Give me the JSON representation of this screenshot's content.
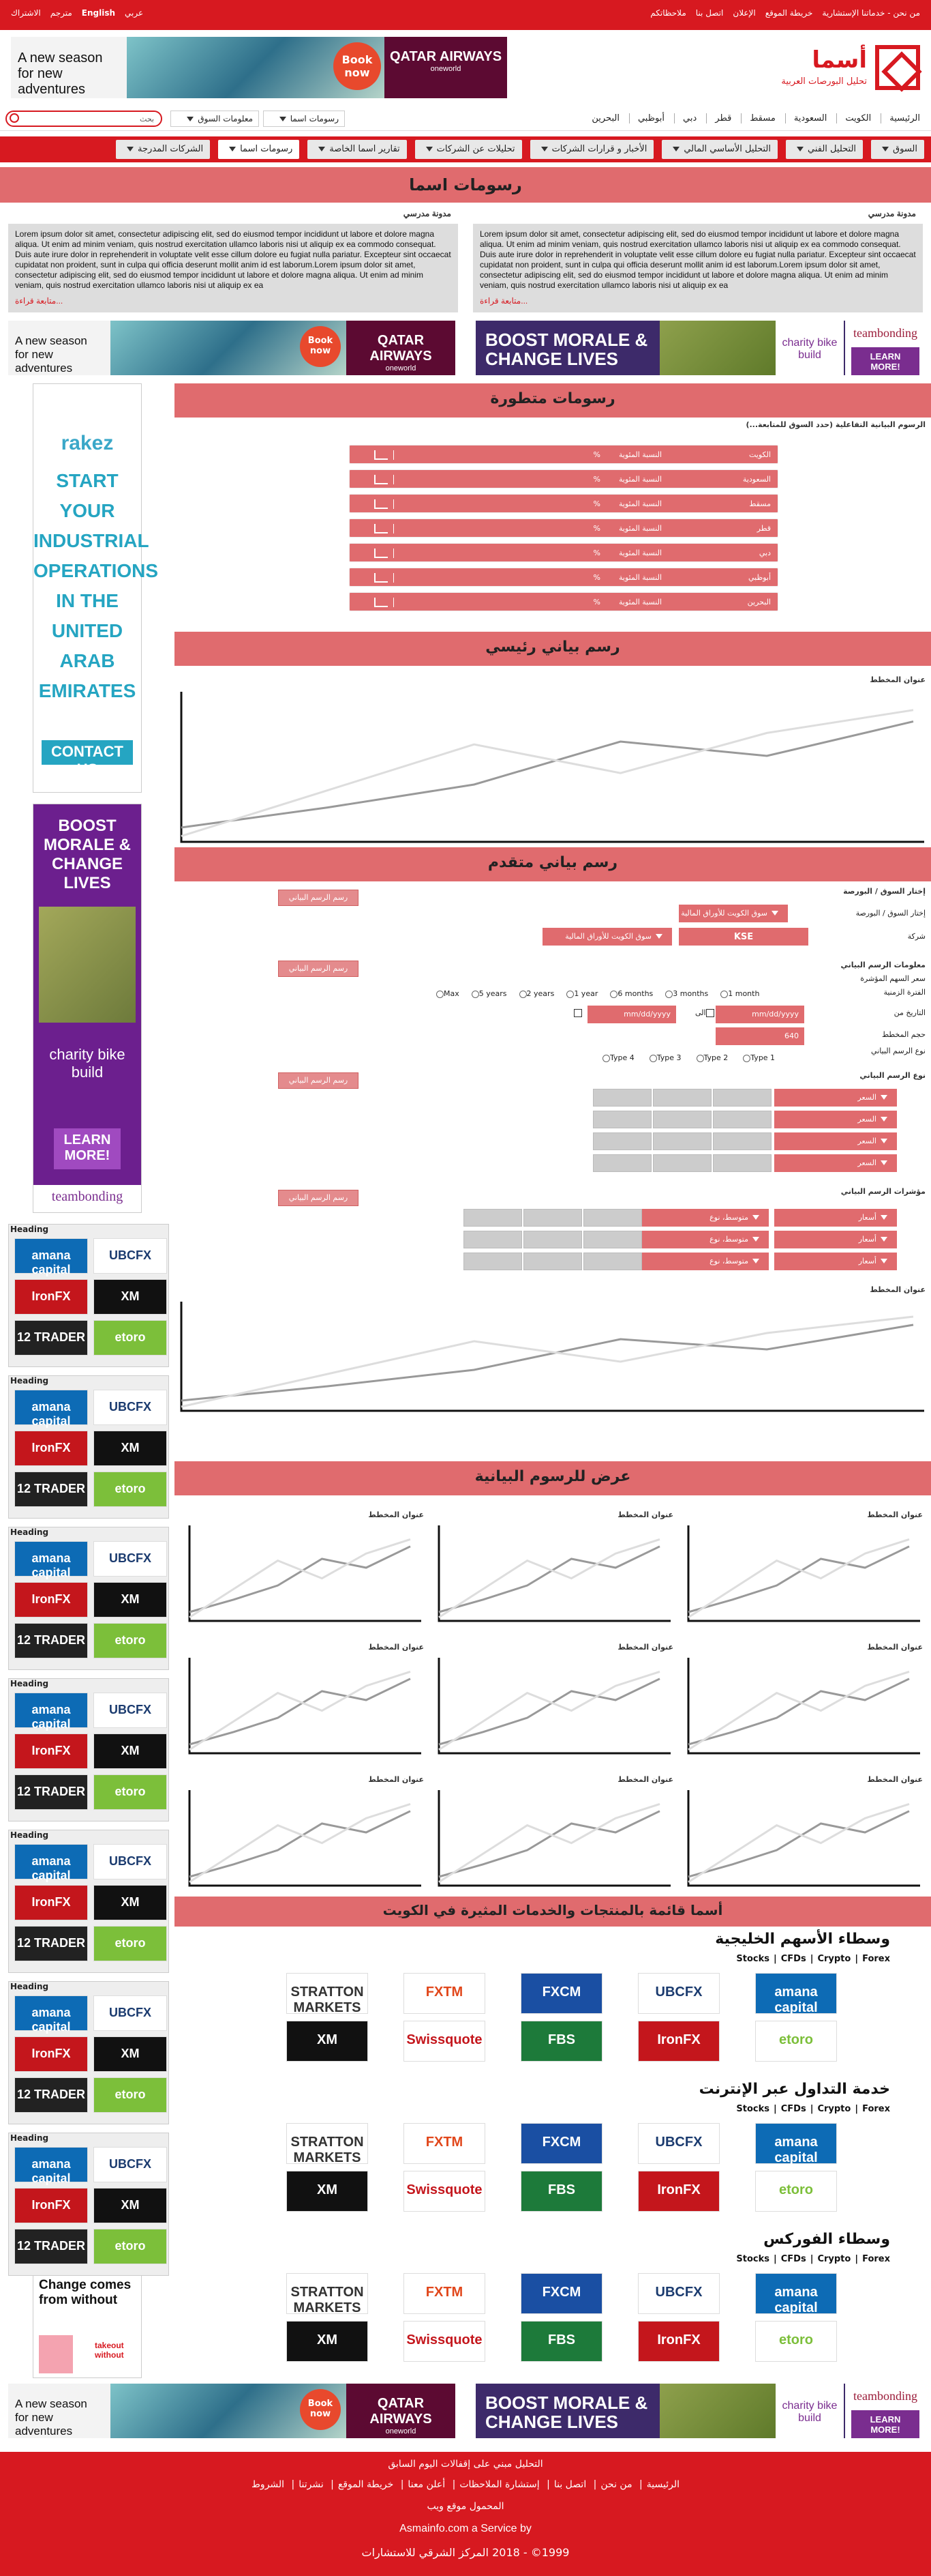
{
  "topbar": {
    "right_links": [
      "من نحن - خدماتنا الإستشارية",
      "خريطة الموقع",
      "الإعلان",
      "اتصل بنا",
      "ملاحظاتكم"
    ],
    "left_links": [
      "عربي",
      "English",
      "مترجم",
      "الاشتراك"
    ]
  },
  "logo": {
    "title": "أسما",
    "subtitle": "تحليل البورصات العربية"
  },
  "ad_qatar": {
    "left_text": "A new season for new adventures",
    "book": "Book now",
    "brand": "QATAR AIRWAYS",
    "brand_sub": "oneworld"
  },
  "nav": {
    "links": [
      "الرئيسية",
      "الكويت",
      "السعودية",
      "مسقط",
      "قطر",
      "دبي",
      "أبوظبي",
      "البحرين"
    ],
    "select1": "معلومات السوق",
    "select2": "رسومات اسما",
    "search_label": "بحث"
  },
  "menu": [
    "السوق",
    "التحليل الفني",
    "التحليل الأساسي المالي",
    "الأخبار و قرارات الشركات",
    "تحليلات عن الشركات",
    "تقارير اسما الخاصة",
    "رسومات اسما",
    "الشركات المدرجة"
  ],
  "page_title": "رسومات اسما",
  "blogs": [
    {
      "title": "مدونة مدرسي",
      "body": "Lorem ipsum dolor sit amet, consectetur adipiscing elit, sed do eiusmod tempor incididunt ut labore et dolore magna aliqua. Ut enim ad minim veniam, quis nostrud exercitation ullamco laboris nisi ut aliquip ex ea commodo consequat. Duis aute irure dolor in reprehenderit in voluptate velit esse cillum dolore eu fugiat nulla pariatur. Excepteur sint occaecat cupidatat non proident, sunt in culpa qui officia deserunt mollit anim id est laborum.Lorem ipsum dolor sit amet, consectetur adipiscing elit, sed do eiusmod tempor incididunt ut labore et dolore magna aliqua. Ut enim ad minim veniam, quis nostrud exercitation ullamco laboris nisi ut aliquip ex ea",
      "more": "متابعة قراءة..."
    },
    {
      "title": "مدونة مدرسي",
      "body": "Lorem ipsum dolor sit amet, consectetur adipiscing elit, sed do eiusmod tempor incididunt ut labore et dolore magna aliqua. Ut enim ad minim veniam, quis nostrud exercitation ullamco laboris nisi ut aliquip ex ea commodo consequat. Duis aute irure dolor in reprehenderit in voluptate velit esse cillum dolore eu fugiat nulla pariatur. Excepteur sint occaecat cupidatat non proident, sunt in culpa qui officia deserunt mollit anim id est laborum.Lorem ipsum dolor sit amet, consectetur adipiscing elit, sed do eiusmod tempor incididunt ut labore et dolore magna aliqua. Ut enim ad minim veniam, quis nostrud exercitation ullamco laboris nisi ut aliquip ex ea",
      "more": "متابعة قراءة..."
    }
  ],
  "ad_boost": {
    "title": "BOOST MORALE & CHANGE LIVES",
    "charity": "charity bike build",
    "brand": "teambonding",
    "learn": "LEARN MORE!"
  },
  "ad_rakez": {
    "logo": "rakez",
    "text": "START YOUR INDUSTRIAL OPERATIONS IN THE UNITED ARAB EMIRATES",
    "cta": "CONTACT US"
  },
  "ad_boost_v": {
    "title": "BOOST MORALE & CHANGE LIVES",
    "charity": "charity bike build",
    "learn": "LEARN MORE!",
    "brand": "teambonding"
  },
  "broker_heading": "Heading",
  "broker_tiles": [
    "amana capital",
    "UBCFX",
    "IronFX",
    "XM",
    "12 TRADER",
    "etoro"
  ],
  "ad_change": {
    "text": "Change comes from without",
    "brand": "takeout without"
  },
  "sec_advanced": "رسومات متطورة",
  "interactive_label": "الرسوم البيانية التفاعلية (حدد السوق للمتابعة...)",
  "markets": [
    "الكويت",
    "السعودية",
    "مسقط",
    "قطر",
    "دبي",
    "أبوظبي",
    "البحرين"
  ],
  "pct_label": "النسبة المئوية",
  "pct_sign": "%",
  "sec_main": "رسم بياني رئيسي",
  "chart_title": "عنوان المخطط",
  "sec_adv_chart": "رسم بياني متقدم",
  "form": {
    "choose_market": "إختار السوق / البورصة",
    "market_label": "إختار السوق / البورصة",
    "market_value": "سوق الكويت للأوراق المالية",
    "company_label": "شركة",
    "company_value": "سوق الكويت للأوراق المالية",
    "company_code": "KSE",
    "draw_btn": "رسم الرسم البياني",
    "info_label": "معلومات الرسم البياني",
    "price_label": "سعر السهم المؤشرة",
    "period_label": "الفترة الزمنية",
    "periods": [
      "1 month",
      "3 months",
      "6 months",
      "1 year",
      "2 years",
      "5 years",
      "Max"
    ],
    "date_label": "التاريخ من",
    "date_to": "الى",
    "date_placeholder": "mm/dd/yyyy",
    "size_label": "حجم المخطط",
    "size_value": "640",
    "type_label": "نوع الرسم البياني",
    "types": [
      "Type 1",
      "Type 2",
      "Type 3",
      "Type 4"
    ],
    "chart_type_label": "نوع الرسم البياني",
    "dd_label": "السعر",
    "indicators_label": "مؤشرات الرسم البياني",
    "ind_col1": "أسعار",
    "ind_col2": "متوسط، نوع"
  },
  "sec_display": "عرض للرسوم البيانية",
  "sec_products": "أسما قائمة بالمنتجات والخدمات المثيرة في الكويت",
  "categories": [
    {
      "title": "وسطاء الأسهم الخليجية",
      "filters": [
        "Forex",
        "Crypto",
        "CFDs",
        "Stocks"
      ]
    },
    {
      "title": "خدمة التداول عبر الإنترنت",
      "filters": [
        "Forex",
        "Crypto",
        "CFDs",
        "Stocks"
      ]
    },
    {
      "title": "وسطاء الفوركس",
      "filters": [
        "Forex",
        "Crypto",
        "CFDs",
        "Stocks"
      ]
    }
  ],
  "logos_row1": [
    "amana capital",
    "UBCFX",
    "FXCM",
    "FXTM",
    "STRATTON MARKETS"
  ],
  "logos_row2": [
    "etoro",
    "IronFX",
    "FBS",
    "Swissquote",
    "XM"
  ],
  "footer": {
    "line1": "التحليل مبني على إقفالات اليوم السابق",
    "links": [
      "الرئيسية",
      "من نحن",
      "اتصل بنا",
      "إستشارة الملاحظات",
      "أعلن معنا",
      "خريطة الموقع",
      "نشرتنا",
      "الشروط"
    ],
    "line3": "المحمول موقع ويب",
    "line4": "Asmainfo.com a Service by",
    "line5": "1999© - 2018  المركز الشرقي للاستشارات"
  },
  "chart_data": {
    "type": "line",
    "title": "عنوان المخطط",
    "series": [
      {
        "values": [
          5,
          12,
          20,
          35,
          30,
          42
        ]
      },
      {
        "values": [
          2,
          18,
          34,
          24,
          38,
          46
        ]
      }
    ],
    "ylim": [
      0,
      50
    ]
  },
  "colors": {
    "brand": "#d71920",
    "accent": "#e06b6e"
  }
}
